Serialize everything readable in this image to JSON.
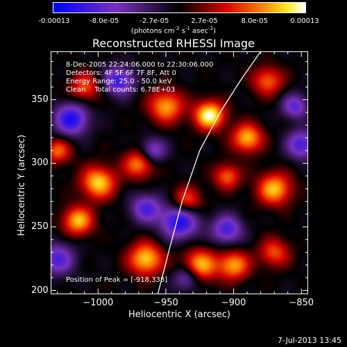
{
  "colorbar": {
    "ticks": [
      "-0.00013",
      "-8.0e-05",
      "-2.7e-05",
      "2.7e-05",
      "8.0e-05",
      "0.00013"
    ],
    "unit_main": "(photons cm",
    "unit_sup1": "-2",
    "unit_mid": " s",
    "unit_sup2": "-1",
    "unit_end": " asec",
    "unit_sup3": "-2",
    "unit_close": ")"
  },
  "annotations": {
    "time": "8-Dec-2005 22:24:06.000 to 22:30:06.000",
    "detectors": "Detectors: 4F 5F 6F 7F 8F, Att 0",
    "energy": "Energy Range: 25.0 - 50.0 keV",
    "clean": "Clean    Total counts: 6.78E+03",
    "peak": "Position of Peak = [-918,338]"
  },
  "footer": {
    "date": "7-Jul-2013 13:45"
  },
  "chart_data": {
    "type": "heatmap",
    "title": "Reconstructed RHESSI Image",
    "xlabel": "Heliocentric X (arcsec)",
    "ylabel": "Heliocentric Y (arcsec)",
    "xlim": [
      -1035,
      -845
    ],
    "ylim": [
      197,
      388
    ],
    "x_ticks": [
      -1000,
      -950,
      -900,
      -850
    ],
    "y_ticks": [
      200,
      250,
      300,
      350
    ],
    "x_tick_labels": [
      "−1000",
      "−950",
      "−900",
      "−850"
    ],
    "y_tick_labels": [
      "200",
      "250",
      "300",
      "350"
    ],
    "colorscale_range": [
      -0.00013,
      0.00013
    ],
    "peak": [
      -918,
      338
    ],
    "limb_curve": [
      [
        -956,
        197
      ],
      [
        -948,
        230
      ],
      [
        -938,
        270
      ],
      [
        -925,
        310
      ],
      [
        -910,
        340
      ],
      [
        -895,
        365
      ],
      [
        -880,
        388
      ]
    ],
    "blobs": [
      [
        -918,
        338,
        1.0,
        8
      ],
      [
        -1000,
        285,
        0.85,
        9
      ],
      [
        -970,
        300,
        0.7,
        8
      ],
      [
        -950,
        345,
        0.75,
        9
      ],
      [
        -1015,
        255,
        0.8,
        8
      ],
      [
        -965,
        225,
        0.85,
        9
      ],
      [
        -925,
        220,
        0.8,
        9
      ],
      [
        -870,
        280,
        0.8,
        9
      ],
      [
        -890,
        320,
        0.8,
        8
      ],
      [
        -900,
        220,
        0.75,
        8
      ],
      [
        -1010,
        360,
        0.55,
        8
      ],
      [
        -870,
        230,
        0.55,
        8
      ],
      [
        -935,
        270,
        0.65,
        8
      ],
      [
        -1030,
        310,
        0.6,
        7
      ],
      [
        -875,
        365,
        0.6,
        8
      ],
      [
        -905,
        290,
        0.6,
        7
      ],
      [
        -1020,
        335,
        -0.85,
        9
      ],
      [
        -940,
        255,
        -0.9,
        10
      ],
      [
        -905,
        248,
        -0.7,
        8
      ],
      [
        -965,
        265,
        -0.65,
        8
      ],
      [
        -985,
        365,
        -0.75,
        8
      ],
      [
        -960,
        310,
        -0.6,
        7
      ],
      [
        -850,
        315,
        -0.7,
        8
      ],
      [
        -1030,
        225,
        -0.65,
        9
      ],
      [
        -855,
        345,
        -0.6,
        7
      ],
      [
        -935,
        210,
        -0.55,
        7
      ]
    ]
  }
}
